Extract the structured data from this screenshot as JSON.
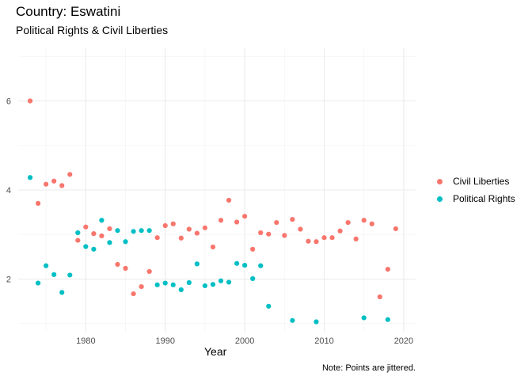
{
  "page": {
    "title": "Country: Eswatini",
    "subtitle": "Political Rights & Civil Liberties",
    "caption": "Note: Points are jittered."
  },
  "chart_data": {
    "type": "scatter",
    "title": "Country: Eswatini",
    "subtitle": "Political Rights & Civil Liberties",
    "xlabel": "Year",
    "ylabel": "",
    "xlim": [
      1971.5,
      2021.5
    ],
    "ylim": [
      0.8,
      7.2
    ],
    "xticks": [
      1980,
      1990,
      2000,
      2010,
      2020
    ],
    "yticks": [
      2,
      4,
      6
    ],
    "grid": true,
    "legend": "right",
    "series": [
      {
        "name": "Civil Liberties",
        "color": "#F8766D",
        "points": [
          [
            1973,
            6.0
          ],
          [
            1974,
            3.7
          ],
          [
            1975,
            4.13
          ],
          [
            1976,
            4.2
          ],
          [
            1977,
            4.1
          ],
          [
            1978,
            4.35
          ],
          [
            1979,
            2.87
          ],
          [
            1980,
            3.17
          ],
          [
            1981,
            3.02
          ],
          [
            1982,
            2.97
          ],
          [
            1983,
            3.13
          ],
          [
            1984,
            2.33
          ],
          [
            1985,
            2.24
          ],
          [
            1986,
            1.67
          ],
          [
            1987,
            1.83
          ],
          [
            1988,
            2.17
          ],
          [
            1989,
            2.93
          ],
          [
            1990,
            3.2
          ],
          [
            1991,
            3.24
          ],
          [
            1992,
            2.92
          ],
          [
            1993,
            3.12
          ],
          [
            1994,
            3.03
          ],
          [
            1995,
            3.15
          ],
          [
            1996,
            2.72
          ],
          [
            1997,
            3.32
          ],
          [
            1998,
            3.77
          ],
          [
            1999,
            3.28
          ],
          [
            2000,
            3.41
          ],
          [
            2001,
            2.67
          ],
          [
            2002,
            3.04
          ],
          [
            2003,
            3.01
          ],
          [
            2004,
            3.27
          ],
          [
            2005,
            2.98
          ],
          [
            2006,
            3.34
          ],
          [
            2007,
            3.12
          ],
          [
            2008,
            2.85
          ],
          [
            2009,
            2.84
          ],
          [
            2010,
            2.93
          ],
          [
            2011,
            2.93
          ],
          [
            2012,
            3.08
          ],
          [
            2013,
            3.27
          ],
          [
            2014,
            2.9
          ],
          [
            2015,
            3.32
          ],
          [
            2016,
            3.24
          ],
          [
            2017,
            1.6
          ],
          [
            2018,
            2.22
          ],
          [
            2019,
            3.13
          ]
        ]
      },
      {
        "name": "Political Rights",
        "color": "#00BFC4",
        "points": [
          [
            1973,
            4.28
          ],
          [
            1974,
            1.91
          ],
          [
            1975,
            2.3
          ],
          [
            1976,
            2.1
          ],
          [
            1977,
            1.7
          ],
          [
            1978,
            2.09
          ],
          [
            1979,
            3.04
          ],
          [
            1980,
            2.73
          ],
          [
            1981,
            2.67
          ],
          [
            1982,
            3.32
          ],
          [
            1983,
            2.82
          ],
          [
            1984,
            3.09
          ],
          [
            1985,
            2.84
          ],
          [
            1986,
            3.07
          ],
          [
            1987,
            3.09
          ],
          [
            1988,
            3.09
          ],
          [
            1989,
            1.87
          ],
          [
            1990,
            1.91
          ],
          [
            1991,
            1.87
          ],
          [
            1992,
            1.76
          ],
          [
            1993,
            1.92
          ],
          [
            1994,
            2.34
          ],
          [
            1995,
            1.85
          ],
          [
            1996,
            1.88
          ],
          [
            1997,
            1.96
          ],
          [
            1998,
            1.93
          ],
          [
            1999,
            2.35
          ],
          [
            2000,
            2.31
          ],
          [
            2001,
            2.01
          ],
          [
            2002,
            2.3
          ],
          [
            2003,
            1.39
          ],
          [
            2006,
            1.07
          ],
          [
            2009,
            1.04
          ],
          [
            2015,
            1.13
          ],
          [
            2018,
            1.09
          ]
        ]
      }
    ]
  }
}
